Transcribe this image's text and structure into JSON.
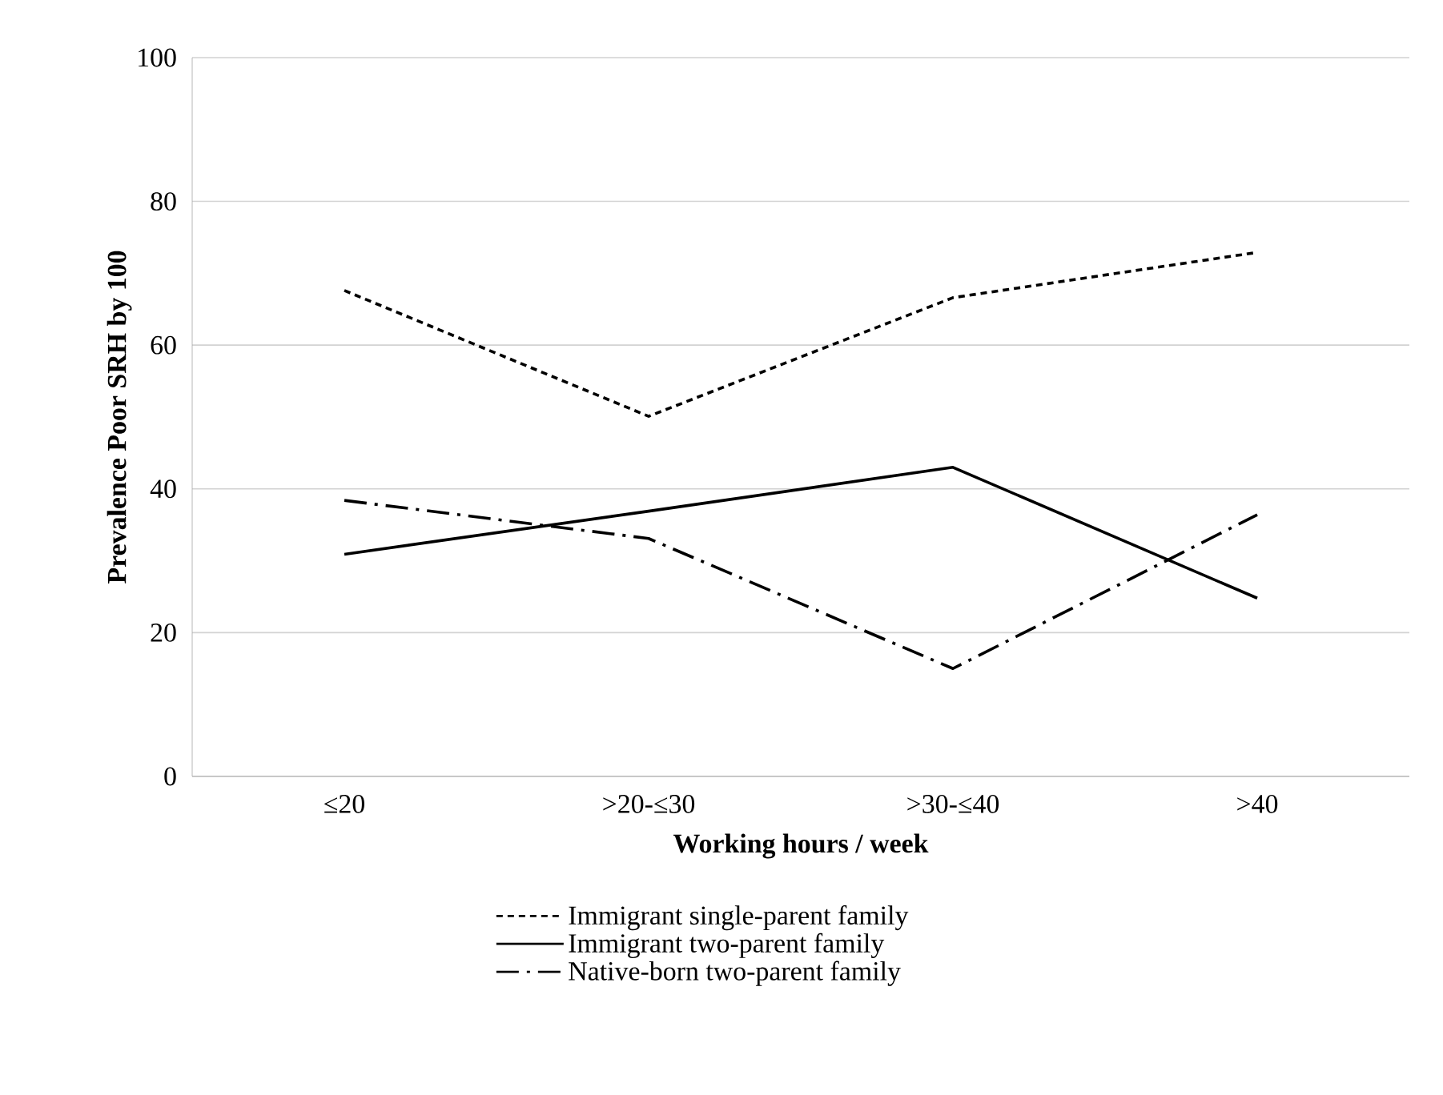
{
  "chart_data": {
    "type": "line",
    "xlabel": "Working hours / week",
    "ylabel": "Prevalence Poor SRH by 100",
    "categories": [
      "≤20",
      ">20-≤30",
      ">30-≤40",
      ">40"
    ],
    "series": [
      {
        "name": "Immigrant single-parent family",
        "color": "#000000",
        "line_style": "dashed",
        "values": [
          67.6,
          50.1,
          66.6,
          72.9
        ]
      },
      {
        "name": "Immigrant two-parent family",
        "color": "#000000",
        "line_style": "solid",
        "values": [
          30.9,
          36.9,
          43.0,
          24.8
        ]
      },
      {
        "name": "Native-born two-parent family",
        "color": "#000000",
        "line_style": "dashdot",
        "values": [
          38.4,
          33.1,
          15.0,
          36.4
        ]
      }
    ],
    "ylim": [
      0,
      100
    ],
    "yticks": [
      0,
      20,
      40,
      60,
      80,
      100
    ],
    "grid": "y",
    "legend": "bottom",
    "marker": "none"
  }
}
